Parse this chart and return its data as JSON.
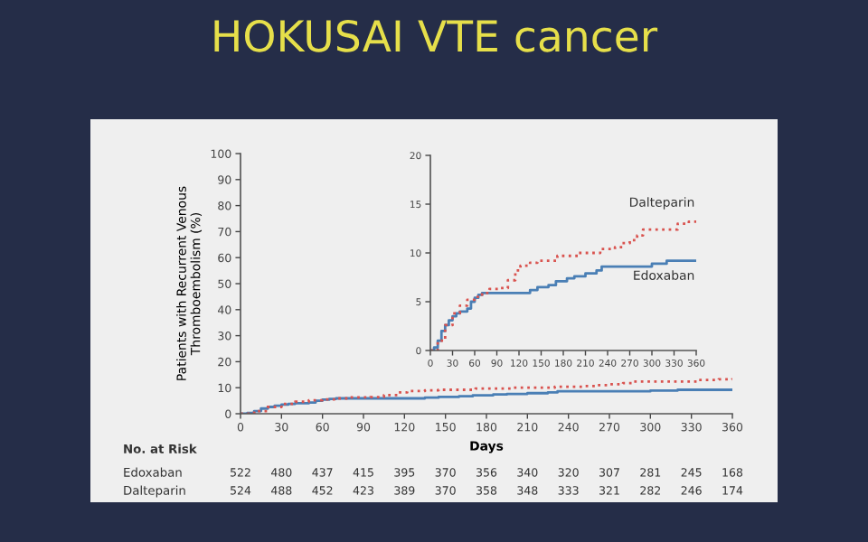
{
  "chart_data": [
    {
      "type": "step",
      "title": "HOKUSAI VTE cancer",
      "xlabel": "Days",
      "ylabel": "Patients with Recurrent Venous\nThromboembolism (%)",
      "xlim": [
        0,
        360
      ],
      "ylim": [
        0,
        100
      ],
      "xticks": [
        0,
        30,
        60,
        90,
        120,
        150,
        180,
        210,
        240,
        270,
        300,
        330,
        360
      ],
      "yticks": [
        0,
        10,
        20,
        30,
        40,
        50,
        60,
        70,
        80,
        90,
        100
      ],
      "grid": false,
      "series": [
        {
          "color": "#4a7fb5",
          "line_style": "solid",
          "x": [
            0,
            5,
            10,
            15,
            20,
            25,
            30,
            35,
            40,
            50,
            55,
            60,
            65,
            70,
            130,
            135,
            145,
            160,
            170,
            185,
            195,
            210,
            225,
            232,
            300,
            320,
            360
          ],
          "values": [
            0,
            0.3,
            1,
            2,
            2.6,
            3.1,
            3.5,
            3.8,
            4.0,
            4.3,
            5.0,
            5.4,
            5.7,
            5.9,
            5.9,
            6.2,
            6.5,
            6.7,
            7.1,
            7.4,
            7.6,
            7.9,
            8.2,
            8.6,
            8.9,
            9.2,
            9.2
          ]
        },
        {
          "color": "#d9534f",
          "line_style": "dotted",
          "x": [
            0,
            10,
            20,
            30,
            40,
            50,
            60,
            70,
            80,
            95,
            105,
            115,
            122,
            135,
            145,
            172,
            200,
            230,
            250,
            260,
            270,
            280,
            288,
            335,
            350,
            360
          ],
          "values": [
            0,
            1,
            2.6,
            3.8,
            4.6,
            5.2,
            5.5,
            5.9,
            6.3,
            6.4,
            7.2,
            8.2,
            8.7,
            9.0,
            9.2,
            9.7,
            10.0,
            10.4,
            10.6,
            11.0,
            11.3,
            11.8,
            12.4,
            13.0,
            13.2,
            13.6
          ]
        }
      ],
      "annotations": [
        "No. at Risk",
        "Edoxaban",
        "Dalteparin",
        "522",
        "480",
        "437",
        "415",
        "395",
        "370",
        "356",
        "340",
        "320",
        "307",
        "281",
        "245",
        "168",
        "524",
        "488",
        "452",
        "423",
        "389",
        "370",
        "358",
        "348",
        "333",
        "321",
        "282",
        "246",
        "174"
      ]
    },
    {
      "type": "step",
      "xlim": [
        0,
        360
      ],
      "ylim": [
        0,
        20
      ],
      "xticks": [
        0,
        30,
        60,
        90,
        120,
        150,
        180,
        210,
        240,
        270,
        300,
        330,
        360
      ],
      "yticks": [
        0,
        5,
        10,
        15,
        20
      ],
      "grid": false,
      "series": [
        {
          "name": "Edoxaban",
          "color": "#4a7fb5",
          "line_style": "solid",
          "x": [
            0,
            5,
            10,
            15,
            20,
            25,
            30,
            35,
            40,
            50,
            55,
            60,
            65,
            70,
            130,
            135,
            145,
            160,
            170,
            185,
            195,
            210,
            225,
            232,
            300,
            320,
            360
          ],
          "values": [
            0,
            0.3,
            1,
            2,
            2.6,
            3.1,
            3.5,
            3.8,
            4.0,
            4.3,
            5.0,
            5.4,
            5.7,
            5.9,
            5.9,
            6.2,
            6.5,
            6.7,
            7.1,
            7.4,
            7.6,
            7.9,
            8.2,
            8.6,
            8.9,
            9.2,
            9.2
          ]
        },
        {
          "name": "Dalteparin",
          "color": "#d9534f",
          "line_style": "dotted",
          "x": [
            0,
            10,
            20,
            30,
            40,
            50,
            60,
            70,
            80,
            95,
            105,
            115,
            122,
            135,
            145,
            172,
            200,
            230,
            250,
            260,
            270,
            280,
            288,
            335,
            350,
            360
          ],
          "values": [
            0,
            1,
            2.6,
            3.8,
            4.6,
            5.2,
            5.5,
            5.9,
            6.3,
            6.4,
            7.2,
            8.2,
            8.7,
            9.0,
            9.2,
            9.7,
            10.0,
            10.4,
            10.6,
            11.0,
            11.3,
            11.8,
            12.4,
            13.0,
            13.2,
            13.6
          ]
        }
      ]
    }
  ]
}
